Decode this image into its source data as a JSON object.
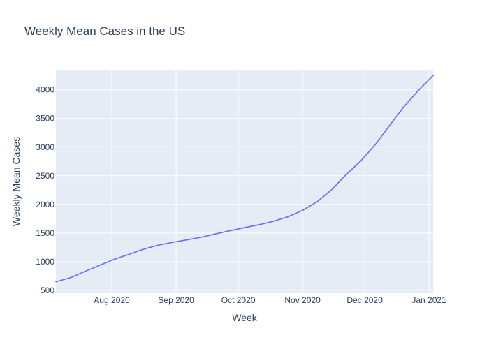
{
  "chart_data": {
    "type": "line",
    "title": "Weekly Mean Cases in the US",
    "xlabel": "Week",
    "ylabel": "Weekly Mean Cases",
    "x_axis": {
      "type": "date",
      "range": [
        "2020-07-05",
        "2021-01-03"
      ],
      "tick_values": [
        "2020-08-01",
        "2020-09-01",
        "2020-10-01",
        "2020-11-01",
        "2020-12-01",
        "2021-01-01"
      ],
      "tick_labels": [
        "Aug 2020",
        "Sep 2020",
        "Oct 2020",
        "Nov 2020",
        "Dec 2020",
        "Jan 2021"
      ]
    },
    "y_axis": {
      "range": [
        450,
        4350
      ],
      "tick_values": [
        500,
        1000,
        1500,
        2000,
        2500,
        3000,
        3500,
        4000
      ],
      "tick_labels": [
        "500",
        "1000",
        "1500",
        "2000",
        "2500",
        "3000",
        "3500",
        "4000"
      ]
    },
    "grid": true,
    "plot_background": "#e5ecf6",
    "line_color": "#636efa",
    "series": [
      {
        "name": "",
        "x": [
          "2020-07-05",
          "2020-07-12",
          "2020-07-19",
          "2020-07-26",
          "2020-08-02",
          "2020-08-09",
          "2020-08-16",
          "2020-08-23",
          "2020-08-30",
          "2020-09-06",
          "2020-09-13",
          "2020-09-20",
          "2020-09-27",
          "2020-10-04",
          "2020-10-11",
          "2020-10-18",
          "2020-10-25",
          "2020-11-01",
          "2020-11-08",
          "2020-11-15",
          "2020-11-22",
          "2020-11-29",
          "2020-12-06",
          "2020-12-13",
          "2020-12-20",
          "2020-12-27",
          "2021-01-03"
        ],
        "y": [
          650,
          720,
          830,
          935,
          1040,
          1125,
          1215,
          1285,
          1335,
          1380,
          1425,
          1485,
          1540,
          1595,
          1645,
          1705,
          1785,
          1895,
          2045,
          2255,
          2520,
          2755,
          3040,
          3380,
          3710,
          3995,
          4250
        ]
      }
    ]
  }
}
